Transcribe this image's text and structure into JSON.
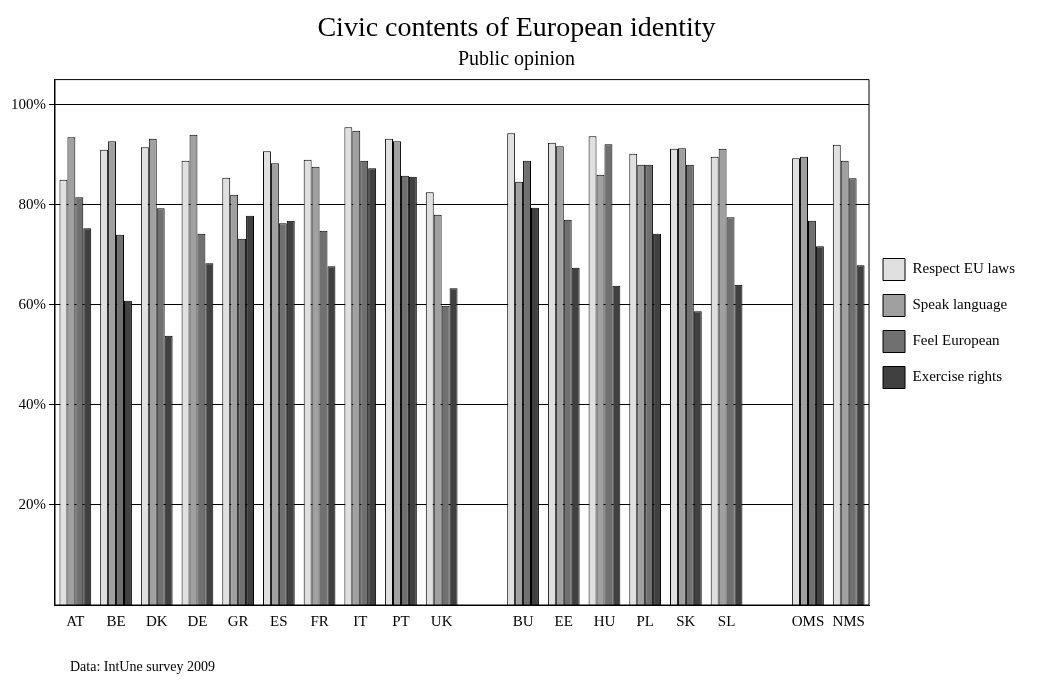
{
  "chart_data": {
    "type": "bar",
    "title": "Civic contents of European identity",
    "subtitle": "Public opinion",
    "categories": [
      "AT",
      "BE",
      "DK",
      "DE",
      "GR",
      "ES",
      "FR",
      "IT",
      "PT",
      "UK",
      null,
      "BU",
      "EE",
      "HU",
      "PL",
      "SK",
      "SL",
      null,
      "OMS",
      "NMS"
    ],
    "series": [
      {
        "name": "Respect EU laws",
        "color": "#e0e0e0",
        "values": [
          85,
          91,
          91.5,
          88.8,
          85.4,
          90.7,
          89,
          95.5,
          93.2,
          82.5,
          null,
          94.3,
          92.4,
          93.7,
          90.2,
          91.2,
          89.6,
          null,
          89.3,
          92
        ]
      },
      {
        "name": "Speak language",
        "color": "#a0a0a0",
        "values": [
          93.5,
          92.7,
          93.2,
          94,
          82,
          88.3,
          87.6,
          94.8,
          92.7,
          78,
          null,
          84.6,
          91.7,
          86,
          88,
          91.3,
          91.2,
          null,
          89.6,
          88.8
        ]
      },
      {
        "name": "Feel European",
        "color": "#707070",
        "values": [
          81.5,
          74,
          79.3,
          74.2,
          73.2,
          76.3,
          74.8,
          88.8,
          85.8,
          59.8,
          null,
          88.8,
          77,
          92.1,
          88,
          88,
          77.5,
          null,
          76.8,
          85.3
        ]
      },
      {
        "name": "Exercise rights",
        "color": "#404040",
        "values": [
          75.3,
          60.8,
          53.8,
          68.3,
          77.8,
          76.8,
          67.7,
          87.3,
          85.6,
          63.3,
          null,
          79.4,
          67.4,
          63.8,
          74.2,
          58.7,
          64,
          null,
          71.7,
          67.9
        ]
      }
    ],
    "ylim": [
      0,
      105
    ],
    "yticks": [
      {
        "value": 20,
        "label": "20%"
      },
      {
        "value": 40,
        "label": "40%"
      },
      {
        "value": 60,
        "label": "60%"
      },
      {
        "value": 80,
        "label": "80%"
      },
      {
        "value": 100,
        "label": "100%"
      }
    ],
    "grid": "y",
    "legend": "right",
    "annotations": [
      "Data: IntUne survey 2009"
    ]
  }
}
